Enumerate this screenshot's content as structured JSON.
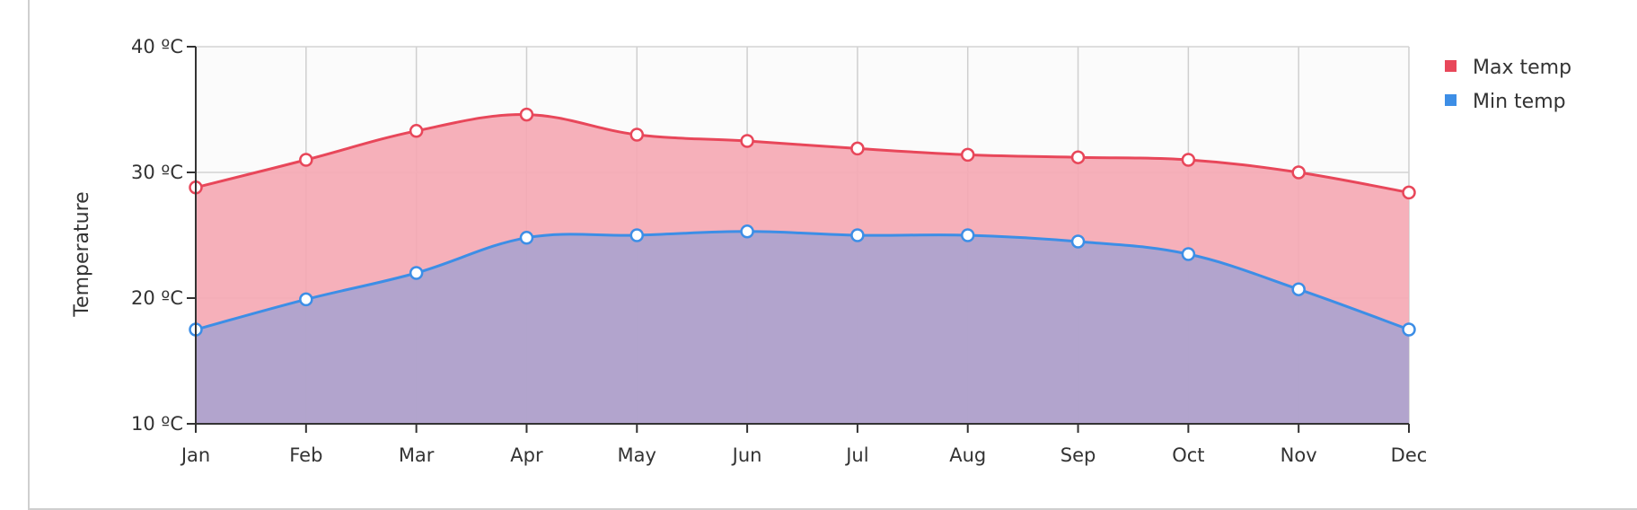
{
  "chart_data": {
    "type": "area",
    "categories": [
      "Jan",
      "Feb",
      "Mar",
      "Apr",
      "May",
      "Jun",
      "Jul",
      "Aug",
      "Sep",
      "Oct",
      "Nov",
      "Dec"
    ],
    "series": [
      {
        "name": "Max temp",
        "values": [
          28.8,
          31.0,
          33.3,
          34.6,
          33.0,
          32.5,
          31.9,
          31.4,
          31.2,
          31.0,
          30.0,
          28.4
        ],
        "color": "#e8475a",
        "fill": "#f5a9b4"
      },
      {
        "name": "Min temp",
        "values": [
          17.5,
          19.9,
          22.0,
          24.8,
          25.0,
          25.3,
          25.0,
          25.0,
          24.5,
          23.5,
          20.7,
          17.5
        ],
        "color": "#3d8ee6",
        "fill": "#aba3ce"
      }
    ],
    "ylabel": "Temperature",
    "xlabel": "",
    "y_ticks": [
      "10 ºC",
      "20 ºC",
      "30 ºC",
      "40 ºC"
    ],
    "ylim": [
      10,
      40
    ],
    "grid": true,
    "legend_position": "top-right"
  }
}
